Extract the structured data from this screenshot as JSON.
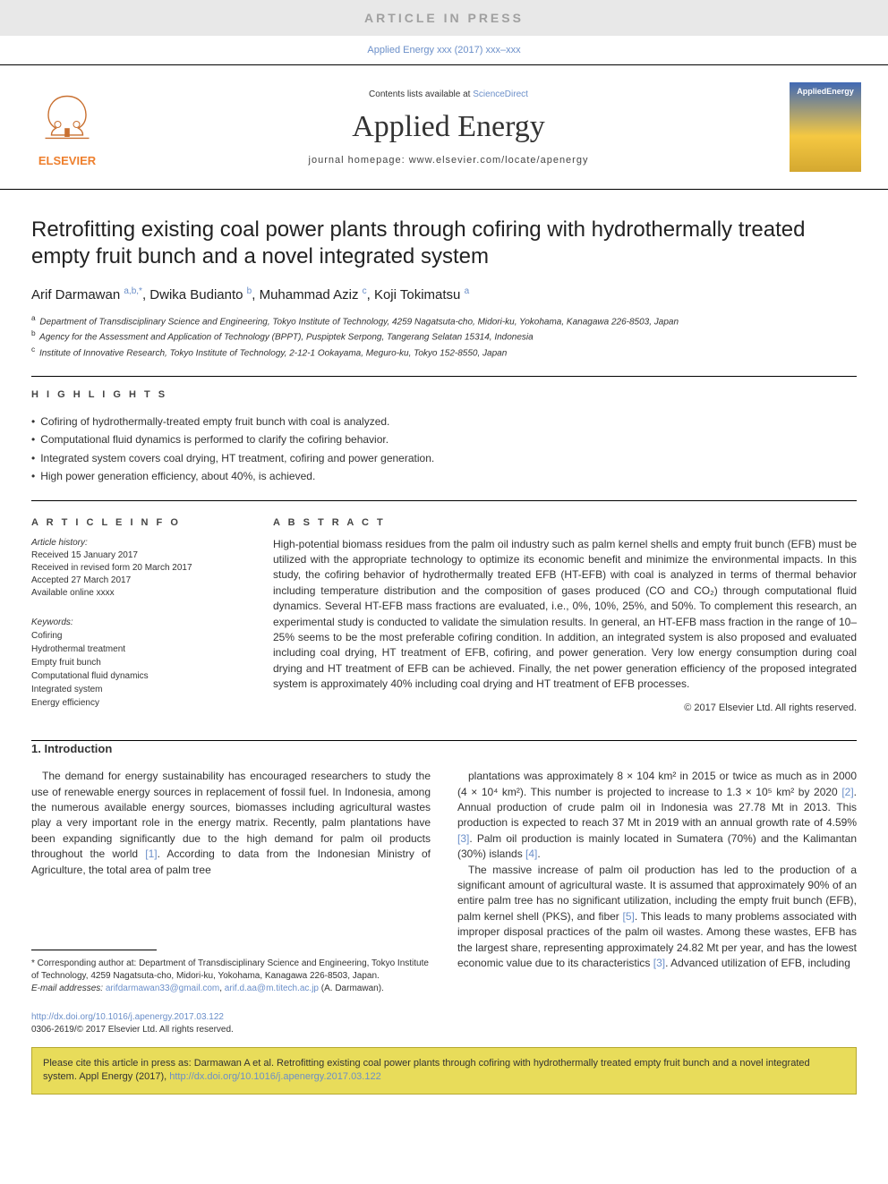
{
  "banner": {
    "status_text": "ARTICLE IN PRESS"
  },
  "header": {
    "journal_ref": "Applied Energy xxx (2017) xxx–xxx",
    "contents_label": "Contents lists available at",
    "contents_link": "ScienceDirect",
    "journal_title": "Applied Energy",
    "homepage_label": "journal homepage: www.elsevier.com/locate/apenergy",
    "publisher_name": "ELSEVIER",
    "cover_label": "AppliedEnergy"
  },
  "article": {
    "title": "Retrofitting existing coal power plants through cofiring with hydrothermally treated empty fruit bunch and a novel integrated system",
    "authors_html": "Arif Darmawan <sup>a,b,*</sup>, Dwika Budianto <sup>b</sup>, Muhammad Aziz <sup>c</sup>, Koji Tokimatsu <sup>a</sup>"
  },
  "affiliations": [
    {
      "id": "a",
      "text": "Department of Transdisciplinary Science and Engineering, Tokyo Institute of Technology, 4259 Nagatsuta-cho, Midori-ku, Yokohama, Kanagawa 226-8503, Japan"
    },
    {
      "id": "b",
      "text": "Agency for the Assessment and Application of Technology (BPPT), Puspiptek Serpong, Tangerang Selatan 15314, Indonesia"
    },
    {
      "id": "c",
      "text": "Institute of Innovative Research, Tokyo Institute of Technology, 2-12-1 Ookayama, Meguro-ku, Tokyo 152-8550, Japan"
    }
  ],
  "highlights": {
    "heading": "H I G H L I G H T S",
    "items": [
      "Cofiring of hydrothermally-treated empty fruit bunch with coal is analyzed.",
      "Computational fluid dynamics is performed to clarify the cofiring behavior.",
      "Integrated system covers coal drying, HT treatment, cofiring and power generation.",
      "High power generation efficiency, about 40%, is achieved."
    ]
  },
  "info": {
    "heading": "A R T I C L E   I N F O",
    "history_label": "Article history:",
    "received": "Received 15 January 2017",
    "revised": "Received in revised form 20 March 2017",
    "accepted": "Accepted 27 March 2017",
    "online": "Available online xxxx",
    "keywords_label": "Keywords:",
    "keywords": [
      "Cofiring",
      "Hydrothermal treatment",
      "Empty fruit bunch",
      "Computational fluid dynamics",
      "Integrated system",
      "Energy efficiency"
    ]
  },
  "abstract": {
    "heading": "A B S T R A C T",
    "text": "High-potential biomass residues from the palm oil industry such as palm kernel shells and empty fruit bunch (EFB) must be utilized with the appropriate technology to optimize its economic benefit and minimize the environmental impacts. In this study, the cofiring behavior of hydrothermally treated EFB (HT-EFB) with coal is analyzed in terms of thermal behavior including temperature distribution and the composition of gases produced (CO and CO₂) through computational fluid dynamics. Several HT-EFB mass fractions are evaluated, i.e., 0%, 10%, 25%, and 50%. To complement this research, an experimental study is conducted to validate the simulation results. In general, an HT-EFB mass fraction in the range of 10–25% seems to be the most preferable cofiring condition. In addition, an integrated system is also proposed and evaluated including coal drying, HT treatment of EFB, cofiring, and power generation. Very low energy consumption during coal drying and HT treatment of EFB can be achieved. Finally, the net power generation efficiency of the proposed integrated system is approximately 40% including coal drying and HT treatment of EFB processes.",
    "copyright": "© 2017 Elsevier Ltd. All rights reserved."
  },
  "intro": {
    "heading": "1. Introduction",
    "p1_a": "The demand for energy sustainability has encouraged researchers to study the use of renewable energy sources in replacement of fossil fuel. In Indonesia, among the numerous available energy sources, biomasses including agricultural wastes play a very important role in the energy matrix. Recently, palm plantations have been expanding significantly due to the high demand for palm oil products throughout the world ",
    "ref1": "[1]",
    "p1_b": ". According to data from the Indonesian Ministry of Agriculture, the total area of palm tree",
    "p2_a": "plantations was approximately 8 × 104 km² in 2015 or twice as much as in 2000 (4 × 10⁴ km²). This number is projected to increase to 1.3 × 10⁵ km² by 2020 ",
    "ref2": "[2]",
    "p2_b": ". Annual production of crude palm oil in Indonesia was 27.78 Mt in 2013. This production is expected to reach 37 Mt in 2019 with an annual growth rate of 4.59% ",
    "ref3": "[3]",
    "p2_c": ". Palm oil production is mainly located in Sumatera (70%) and the Kalimantan (30%) islands ",
    "ref4": "[4]",
    "p2_d": ".",
    "p3_a": "The massive increase of palm oil production has led to the production of a significant amount of agricultural waste. It is assumed that approximately 90% of an entire palm tree has no significant utilization, including the empty fruit bunch (EFB), palm kernel shell (PKS), and fiber ",
    "ref5": "[5]",
    "p3_b": ". This leads to many problems associated with improper disposal practices of the palm oil wastes. Among these wastes, EFB has the largest share, representing approximately 24.82 Mt per year, and has the lowest economic value due to its characteristics ",
    "ref3b": "[3]",
    "p3_c": ". Advanced utilization of EFB, including"
  },
  "footnotes": {
    "corr_label": "* Corresponding author at: Department of Transdisciplinary Science and Engineering, Tokyo Institute of Technology, 4259 Nagatsuta-cho, Midori-ku, Yokohama, Kanagawa 226-8503, Japan.",
    "email_label": "E-mail addresses:",
    "email1": "arifdarmawan33@gmail.com",
    "email2": "arif.d.aa@m.titech.ac.jp",
    "email_name": "(A. Darmawan)."
  },
  "doi": {
    "link": "http://dx.doi.org/10.1016/j.apenergy.2017.03.122",
    "issn_line": "0306-2619/© 2017 Elsevier Ltd. All rights reserved."
  },
  "citation_banner": {
    "text_a": "Please cite this article in press as: Darmawan A et al. Retrofitting existing coal power plants through cofiring with hydrothermally treated empty fruit bunch and a novel integrated system. Appl Energy (2017), ",
    "link": "http://dx.doi.org/10.1016/j.apenergy.2017.03.122"
  },
  "colors": {
    "link": "#6b8fc9",
    "orange": "#ee7f2d",
    "banner_bg": "#e8e8e8",
    "cite_bg": "#e8dc5a"
  }
}
